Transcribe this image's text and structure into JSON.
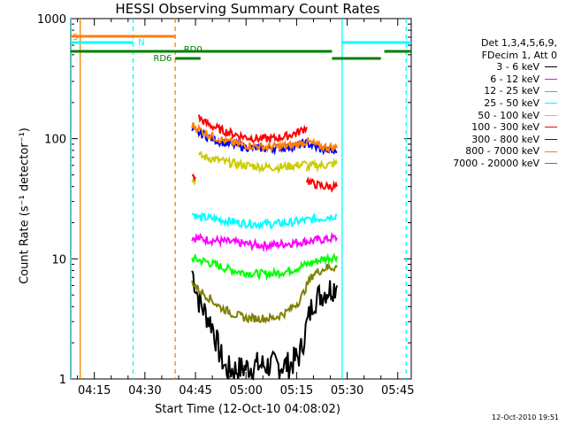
{
  "chart_data": {
    "type": "line",
    "title": "HESSI Observing Summary Count Rates",
    "xlabel": "Start Time (12-Oct-10 04:08:02)",
    "ylabel": "Count Rate (s⁻¹ detector⁻¹)",
    "y_scale": "log",
    "ylim": [
      1,
      1000
    ],
    "xlim_minutes": [
      0,
      101
    ],
    "xticks": [
      "04:15",
      "04:30",
      "04:45",
      "05:00",
      "05:15",
      "05:30",
      "05:45"
    ],
    "yticks": [
      "1",
      "10",
      "100",
      "1000"
    ],
    "legend_header": [
      "Det 1,3,4,5,6,9,",
      "FDecim 1, Att 0"
    ],
    "legend_position": "right",
    "timestamp": "12-Oct-2010 19:51",
    "flags": {
      "S": "S",
      "N": "N",
      "RD0": "RD0",
      "RD6": "RD6"
    },
    "series": [
      {
        "name": "3 - 6 keV",
        "color": "#000000",
        "segments": [
          [
            [
              36,
              8
            ],
            [
              38,
              4.5
            ],
            [
              40,
              3.5
            ],
            [
              42,
              2.8
            ],
            [
              44,
              1.7
            ],
            [
              46,
              1.2
            ],
            [
              50,
              1.2
            ],
            [
              55,
              1.3
            ],
            [
              60,
              1.3
            ],
            [
              65,
              1.3
            ],
            [
              68,
              1.6
            ],
            [
              70,
              2.8
            ],
            [
              72,
              4.5
            ],
            [
              74,
              5
            ],
            [
              76,
              5.5
            ],
            [
              79,
              6
            ]
          ]
        ]
      },
      {
        "name": "6 - 12 keV",
        "color": "#ff00ff",
        "segments": [
          [
            [
              36,
              15
            ],
            [
              40,
              14.5
            ],
            [
              45,
              14
            ],
            [
              50,
              13.5
            ],
            [
              55,
              13
            ],
            [
              60,
              13
            ],
            [
              65,
              13.5
            ],
            [
              70,
              14
            ],
            [
              75,
              14.5
            ],
            [
              79,
              15
            ]
          ]
        ]
      },
      {
        "name": "12 - 25 keV",
        "color": "#00ff00",
        "segments": [
          [
            [
              36,
              10
            ],
            [
              40,
              9.5
            ],
            [
              45,
              8.5
            ],
            [
              50,
              7.8
            ],
            [
              55,
              7.5
            ],
            [
              60,
              7.5
            ],
            [
              65,
              8
            ],
            [
              70,
              9
            ],
            [
              75,
              10
            ],
            [
              79,
              10.5
            ]
          ]
        ]
      },
      {
        "name": "25 - 50 keV",
        "color": "#00ffff",
        "segments": [
          [
            [
              36,
              24
            ],
            [
              38,
              22
            ],
            [
              40,
              22
            ],
            [
              45,
              21
            ],
            [
              50,
              20
            ],
            [
              55,
              19.5
            ],
            [
              60,
              19.5
            ],
            [
              65,
              20
            ],
            [
              70,
              21
            ],
            [
              75,
              22
            ],
            [
              79,
              23
            ]
          ]
        ]
      },
      {
        "name": "50 - 100 keV",
        "color": "#cccc00",
        "segments": [
          [
            [
              36,
              45
            ],
            [
              37,
              46
            ]
          ],
          [
            [
              38,
              72
            ],
            [
              42,
              68
            ],
            [
              47,
              63
            ],
            [
              52,
              60
            ],
            [
              57,
              58
            ],
            [
              62,
              58
            ],
            [
              67,
              60
            ],
            [
              70,
              62
            ]
          ],
          [
            [
              70,
              57
            ],
            [
              72,
              60
            ],
            [
              75,
              60
            ],
            [
              79,
              62
            ]
          ]
        ]
      },
      {
        "name": "100 - 300 keV",
        "color": "#ff0000",
        "segments": [
          [
            [
              36,
              50
            ],
            [
              37,
              48
            ]
          ],
          [
            [
              38,
              150
            ],
            [
              40,
              135
            ],
            [
              44,
              120
            ],
            [
              48,
              110
            ],
            [
              52,
              103
            ],
            [
              56,
              100
            ],
            [
              60,
              100
            ],
            [
              64,
              105
            ],
            [
              68,
              115
            ],
            [
              70,
              125
            ]
          ],
          [
            [
              70,
              45
            ],
            [
              72,
              42
            ],
            [
              75,
              40
            ],
            [
              79,
              40
            ]
          ]
        ]
      },
      {
        "name": "300 - 800 keV",
        "color": "#0000ff",
        "segments": [
          [
            [
              36,
              115
            ],
            [
              38,
              112
            ],
            [
              42,
              100
            ],
            [
              46,
              92
            ],
            [
              50,
              87
            ],
            [
              54,
              84
            ],
            [
              58,
              83
            ],
            [
              62,
              84
            ],
            [
              66,
              86
            ],
            [
              70,
              92
            ],
            [
              74,
              82
            ],
            [
              79,
              77
            ]
          ]
        ]
      },
      {
        "name": "800 - 7000 keV",
        "color": "#ff8000",
        "segments": [
          [
            [
              36,
              130
            ],
            [
              38,
              120
            ],
            [
              42,
              105
            ],
            [
              46,
              95
            ],
            [
              50,
              90
            ],
            [
              54,
              87
            ],
            [
              58,
              85
            ],
            [
              62,
              86
            ],
            [
              66,
              88
            ],
            [
              70,
              95
            ],
            [
              74,
              86
            ],
            [
              79,
              84
            ]
          ]
        ]
      },
      {
        "name": "7000 - 20000 keV",
        "color": "#808000",
        "segments": [
          [
            [
              36,
              6.5
            ],
            [
              38,
              5.5
            ],
            [
              40,
              5
            ],
            [
              42,
              4.5
            ],
            [
              44,
              4
            ],
            [
              48,
              3.5
            ],
            [
              52,
              3.2
            ],
            [
              56,
              3.2
            ],
            [
              60,
              3.2
            ],
            [
              64,
              3.6
            ],
            [
              68,
              4.5
            ],
            [
              70,
              6
            ],
            [
              72,
              7.5
            ],
            [
              76,
              8.5
            ],
            [
              79,
              8.5
            ]
          ]
        ]
      }
    ]
  }
}
